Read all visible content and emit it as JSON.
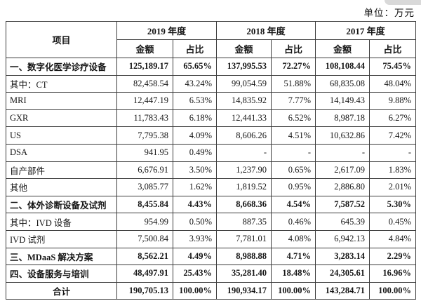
{
  "unit_label": "单位：万元",
  "table": {
    "item_header": "项目",
    "year_headers": [
      "2019 年度",
      "2018 年度",
      "2017 年度"
    ],
    "sub_headers": {
      "amount": "金额",
      "ratio": "占比"
    },
    "rows": [
      {
        "label": "一、数字化医学诊疗设备",
        "bold": true,
        "center": false,
        "values": [
          "125,189.17",
          "65.65%",
          "137,995.53",
          "72.27%",
          "108,108.44",
          "75.45%"
        ]
      },
      {
        "label": "其中：CT",
        "bold": false,
        "center": false,
        "values": [
          "82,458.54",
          "43.24%",
          "99,054.59",
          "51.88%",
          "68,835.08",
          "48.04%"
        ]
      },
      {
        "label": "MRI",
        "bold": false,
        "center": false,
        "values": [
          "12,447.19",
          "6.53%",
          "14,835.92",
          "7.77%",
          "14,149.43",
          "9.88%"
        ]
      },
      {
        "label": "GXR",
        "bold": false,
        "center": false,
        "values": [
          "11,783.43",
          "6.18%",
          "12,441.33",
          "6.52%",
          "8,987.18",
          "6.27%"
        ]
      },
      {
        "label": "US",
        "bold": false,
        "center": false,
        "values": [
          "7,795.38",
          "4.09%",
          "8,606.26",
          "4.51%",
          "10,632.86",
          "7.42%"
        ]
      },
      {
        "label": "DSA",
        "bold": false,
        "center": false,
        "values": [
          "941.95",
          "0.49%",
          "-",
          "-",
          "-",
          "-"
        ]
      },
      {
        "label": "自产部件",
        "bold": false,
        "center": false,
        "values": [
          "6,676.91",
          "3.50%",
          "1,237.90",
          "0.65%",
          "2,617.09",
          "1.83%"
        ]
      },
      {
        "label": "其他",
        "bold": false,
        "center": false,
        "values": [
          "3,085.77",
          "1.62%",
          "1,819.52",
          "0.95%",
          "2,886.80",
          "2.01%"
        ]
      },
      {
        "label": "二、体外诊断设备及试剂",
        "bold": true,
        "center": false,
        "values": [
          "8,455.84",
          "4.43%",
          "8,668.36",
          "4.54%",
          "7,587.52",
          "5.30%"
        ]
      },
      {
        "label": "其中：IVD 设备",
        "bold": false,
        "center": false,
        "values": [
          "954.99",
          "0.50%",
          "887.35",
          "0.46%",
          "645.39",
          "0.45%"
        ]
      },
      {
        "label": "IVD 试剂",
        "bold": false,
        "center": false,
        "values": [
          "7,500.84",
          "3.93%",
          "7,781.01",
          "4.08%",
          "6,942.13",
          "4.84%"
        ]
      },
      {
        "label": "三、MDaaS 解决方案",
        "bold": true,
        "center": false,
        "values": [
          "8,562.21",
          "4.49%",
          "8,988.88",
          "4.71%",
          "3,283.14",
          "2.29%"
        ]
      },
      {
        "label": "四、设备服务与培训",
        "bold": true,
        "center": false,
        "values": [
          "48,497.91",
          "25.43%",
          "35,281.40",
          "18.48%",
          "24,305.61",
          "16.96%"
        ]
      },
      {
        "label": "合计",
        "bold": true,
        "center": true,
        "values": [
          "190,705.13",
          "100.00%",
          "190,934.17",
          "100.00%",
          "143,284.71",
          "100.00%"
        ]
      }
    ]
  }
}
